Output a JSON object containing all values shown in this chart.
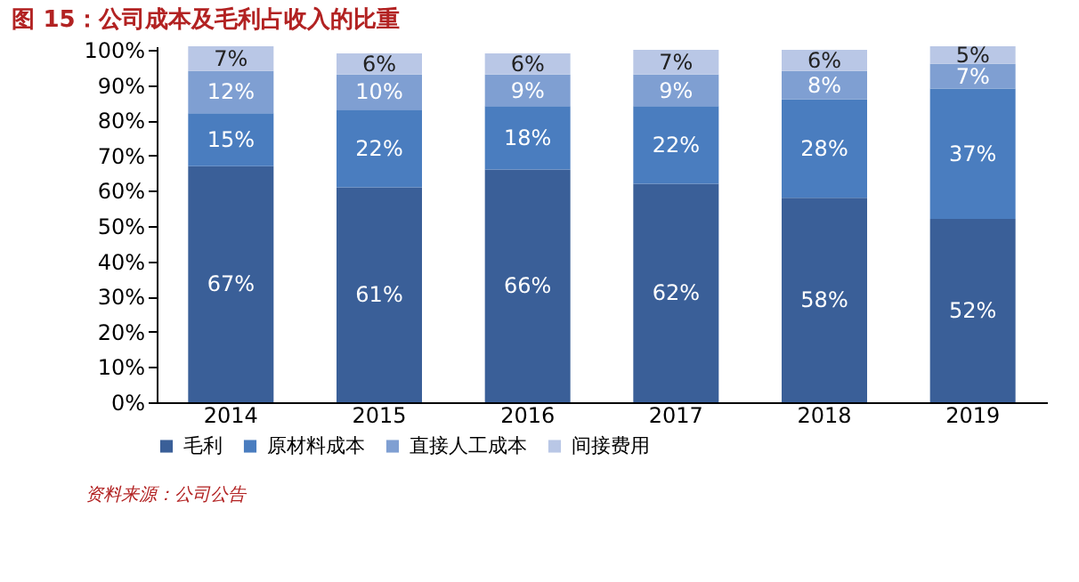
{
  "chart_data": {
    "type": "bar",
    "stacked": true,
    "title": "图 15：公司成本及毛利占收入的比重",
    "categories": [
      "2014",
      "2015",
      "2016",
      "2017",
      "2018",
      "2019"
    ],
    "series": [
      {
        "name": "毛利",
        "color": "#3a5f98",
        "values": [
          67,
          61,
          66,
          62,
          58,
          52
        ],
        "value_labels": [
          "67%",
          "61%",
          "66%",
          "62%",
          "58%",
          "52%"
        ]
      },
      {
        "name": "原材料成本",
        "color": "#4a7dbf",
        "values": [
          15,
          22,
          18,
          22,
          28,
          37
        ],
        "value_labels": [
          "15%",
          "22%",
          "18%",
          "22%",
          "28%",
          "37%"
        ]
      },
      {
        "name": "直接人工成本",
        "color": "#7f9fd2",
        "values": [
          12,
          10,
          9,
          9,
          8,
          7
        ],
        "value_labels": [
          "12%",
          "10%",
          "9%",
          "9%",
          "8%",
          "7%"
        ]
      },
      {
        "name": "间接费用",
        "color": "#b9c7e6",
        "values": [
          7,
          6,
          6,
          7,
          6,
          5
        ],
        "value_labels": [
          "7%",
          "6%",
          "6%",
          "7%",
          "6%",
          "5%"
        ]
      }
    ],
    "ylim": [
      0,
      101
    ],
    "yticks": [
      {
        "value": 0,
        "label": "0%"
      },
      {
        "value": 10,
        "label": "10%"
      },
      {
        "value": 20,
        "label": "20%"
      },
      {
        "value": 30,
        "label": "30%"
      },
      {
        "value": 40,
        "label": "40%"
      },
      {
        "value": 50,
        "label": "50%"
      },
      {
        "value": 60,
        "label": "60%"
      },
      {
        "value": 70,
        "label": "70%"
      },
      {
        "value": 80,
        "label": "80%"
      },
      {
        "value": 90,
        "label": "90%"
      },
      {
        "value": 100,
        "label": "100%"
      }
    ],
    "grid": false,
    "legend": "bottom",
    "annotations": [
      "资料来源：公司公告"
    ]
  }
}
